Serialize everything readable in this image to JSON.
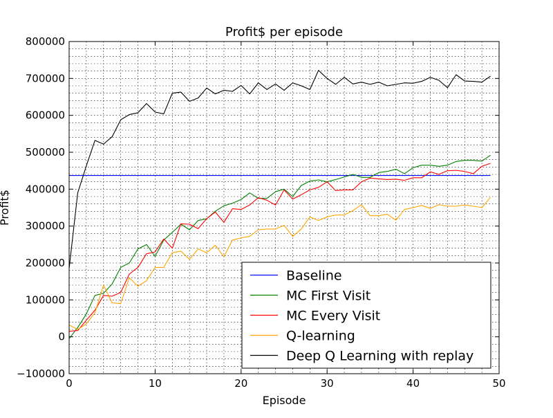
{
  "chart_data": {
    "type": "line",
    "title": "Profit$ per episode",
    "xlabel": "Episode",
    "ylabel": "Profit$",
    "xlim": [
      0,
      50
    ],
    "ylim": [
      -100000,
      800000
    ],
    "x_ticks": [
      0,
      10,
      20,
      30,
      40,
      50
    ],
    "y_ticks": [
      -100000,
      0,
      100000,
      200000,
      300000,
      400000,
      500000,
      600000,
      700000,
      800000
    ],
    "x_tick_labels": [
      "0",
      "10",
      "20",
      "30",
      "40",
      "50"
    ],
    "y_tick_labels": [
      "−100000",
      "0",
      "100000",
      "200000",
      "300000",
      "400000",
      "500000",
      "600000",
      "700000",
      "800000"
    ],
    "grid": true,
    "minor_grid": true,
    "legend_position": "lower-right",
    "x": [
      0,
      1,
      2,
      3,
      4,
      5,
      6,
      7,
      8,
      9,
      10,
      11,
      12,
      13,
      14,
      15,
      16,
      17,
      18,
      19,
      20,
      21,
      22,
      23,
      24,
      25,
      26,
      27,
      28,
      29,
      30,
      31,
      32,
      33,
      34,
      35,
      36,
      37,
      38,
      39,
      40,
      41,
      42,
      43,
      44,
      45,
      46,
      47,
      48,
      49
    ],
    "series": [
      {
        "name": "Baseline",
        "color": "#0000ff",
        "values": [
          437000,
          437000,
          437000,
          437000,
          437000,
          437000,
          437000,
          437000,
          437000,
          437000,
          437000,
          437000,
          437000,
          437000,
          437000,
          437000,
          437000,
          437000,
          437000,
          437000,
          437000,
          437000,
          437000,
          437000,
          437000,
          437000,
          437000,
          437000,
          437000,
          437000,
          437000,
          437000,
          437000,
          437000,
          437000,
          437000,
          437000,
          437000,
          437000,
          437000,
          437000,
          437000,
          437000,
          437000,
          437000,
          437000,
          437000,
          437000,
          437000,
          437000
        ]
      },
      {
        "name": "MC First Visit",
        "color": "#008000",
        "values": [
          -5000,
          25000,
          62000,
          112000,
          118000,
          143000,
          188000,
          200000,
          238000,
          250000,
          218000,
          262000,
          283000,
          305000,
          290000,
          315000,
          320000,
          340000,
          355000,
          362000,
          372000,
          390000,
          375000,
          375000,
          393000,
          400000,
          380000,
          410000,
          422000,
          425000,
          420000,
          426000,
          433000,
          440000,
          432000,
          432000,
          445000,
          448000,
          454000,
          442000,
          458000,
          465000,
          465000,
          462000,
          465000,
          475000,
          478000,
          478000,
          476000,
          492000
        ]
      },
      {
        "name": "MC Every Visit",
        "color": "#ff0000",
        "values": [
          15000,
          17000,
          45000,
          72000,
          112000,
          110000,
          120000,
          170000,
          188000,
          225000,
          230000,
          265000,
          240000,
          306000,
          305000,
          293000,
          320000,
          338000,
          310000,
          347000,
          345000,
          357000,
          377000,
          370000,
          357000,
          398000,
          373000,
          385000,
          398000,
          405000,
          420000,
          396000,
          398000,
          398000,
          420000,
          430000,
          428000,
          426000,
          427000,
          424000,
          431000,
          431000,
          447000,
          440000,
          450000,
          451000,
          448000,
          442000,
          462000,
          470000
        ]
      },
      {
        "name": "Q-learning",
        "color": "#ffa500",
        "values": [
          32000,
          20000,
          35000,
          65000,
          140000,
          92000,
          90000,
          160000,
          137000,
          152000,
          188000,
          188000,
          228000,
          232000,
          210000,
          238000,
          228000,
          248000,
          217000,
          262000,
          268000,
          272000,
          290000,
          292000,
          292000,
          302000,
          272000,
          292000,
          325000,
          315000,
          325000,
          330000,
          330000,
          342000,
          358000,
          328000,
          328000,
          332000,
          316000,
          345000,
          350000,
          356000,
          348000,
          358000,
          354000,
          354000,
          357000,
          354000,
          350000,
          378000
        ]
      },
      {
        "name": "Deep Q Learning with replay",
        "color": "#000000",
        "values": [
          185000,
          390000,
          463000,
          532000,
          522000,
          542000,
          588000,
          602000,
          607000,
          632000,
          609000,
          604000,
          660000,
          663000,
          638000,
          647000,
          674000,
          658000,
          668000,
          665000,
          681000,
          658000,
          688000,
          670000,
          685000,
          668000,
          688000,
          680000,
          670000,
          722000,
          700000,
          684000,
          703000,
          685000,
          690000,
          684000,
          690000,
          680000,
          684000,
          688000,
          687000,
          692000,
          703000,
          695000,
          675000,
          710000,
          693000,
          692000,
          690000,
          706000
        ]
      }
    ]
  }
}
